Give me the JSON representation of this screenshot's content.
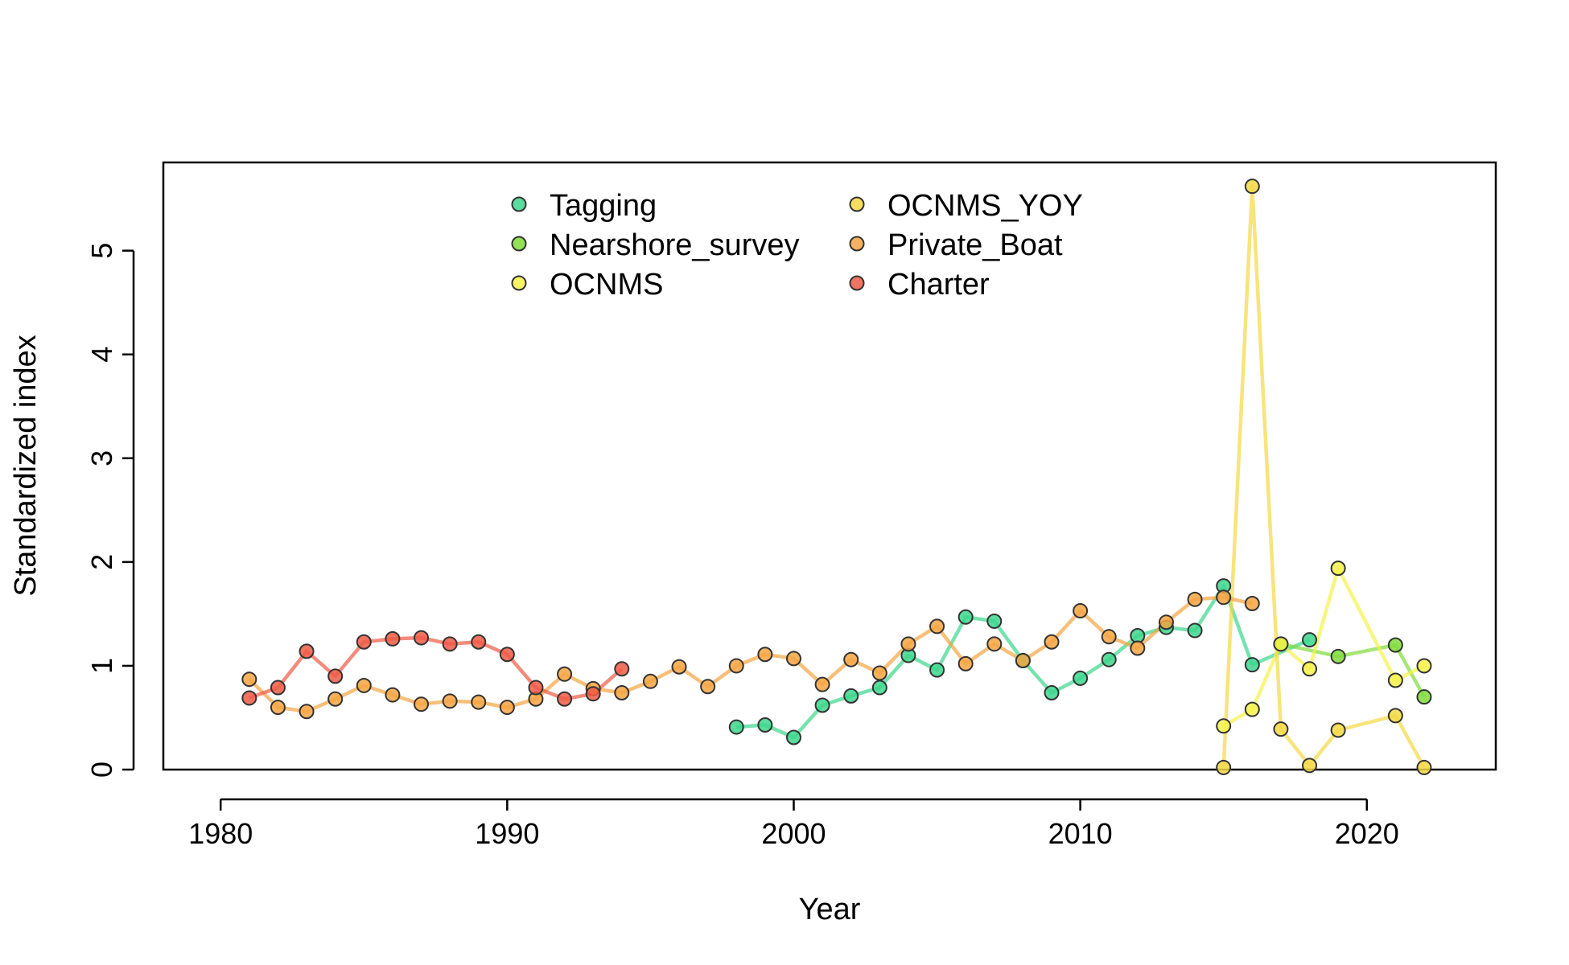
{
  "chart_data": {
    "type": "line",
    "title": "",
    "xlabel": "Year",
    "ylabel": "Standardized index",
    "xlim": [
      1978,
      2024.5
    ],
    "ylim": [
      0,
      5.85
    ],
    "xticks": [
      1980,
      1990,
      2000,
      2010,
      2020
    ],
    "yticks": [
      0,
      1,
      2,
      3,
      4,
      5
    ],
    "grid": false,
    "legend_position": "top-center",
    "series": [
      {
        "name": "Tagging",
        "color": "#3cd68c",
        "x": [
          1998,
          1999,
          2000,
          2001,
          2002,
          2003,
          2004,
          2005,
          2006,
          2007,
          2008,
          2009,
          2010,
          2011,
          2012,
          2013,
          2014,
          2015,
          2016,
          2018
        ],
        "values": [
          0.41,
          0.43,
          0.31,
          0.62,
          0.71,
          0.79,
          1.1,
          0.96,
          1.47,
          1.43,
          1.05,
          0.74,
          0.88,
          1.06,
          1.29,
          1.37,
          1.34,
          1.77,
          1.01,
          1.25
        ]
      },
      {
        "name": "Nearshore_survey",
        "color": "#7fdc3a",
        "x": [
          2017,
          2019,
          2021,
          2022
        ],
        "values": [
          1.21,
          1.09,
          1.2,
          0.7
        ]
      },
      {
        "name": "OCNMS",
        "color": "#f4f24a",
        "x": [
          2015,
          2016,
          2017,
          2018,
          2019,
          2021,
          2022
        ],
        "values": [
          0.42,
          0.58,
          1.21,
          0.97,
          1.94,
          0.86,
          1.0
        ]
      },
      {
        "name": "OCNMS_YOY",
        "color": "#f5d845",
        "x": [
          2015,
          2016,
          2017,
          2018,
          2019,
          2021,
          2022
        ],
        "values": [
          0.02,
          5.62,
          0.39,
          0.04,
          0.38,
          0.52,
          0.02
        ]
      },
      {
        "name": "Private_Boat",
        "color": "#f5a442",
        "x": [
          1981,
          1982,
          1983,
          1984,
          1985,
          1986,
          1987,
          1988,
          1989,
          1990,
          1991,
          1992,
          1993,
          1994,
          1995,
          1996,
          1997,
          1998,
          1999,
          2000,
          2001,
          2002,
          2003,
          2004,
          2005,
          2006,
          2007,
          2008,
          2009,
          2010,
          2011,
          2012,
          2013,
          2014,
          2015,
          2016
        ],
        "values": [
          0.87,
          0.6,
          0.56,
          0.68,
          0.81,
          0.72,
          0.63,
          0.66,
          0.65,
          0.6,
          0.68,
          0.92,
          0.78,
          0.74,
          0.85,
          0.99,
          0.8,
          1.0,
          1.11,
          1.07,
          0.82,
          1.06,
          0.93,
          1.21,
          1.38,
          1.02,
          1.21,
          1.05,
          1.23,
          1.53,
          1.28,
          1.17,
          1.42,
          1.64,
          1.66,
          1.6
        ]
      },
      {
        "name": "Charter",
        "color": "#ee5a45",
        "x": [
          1981,
          1982,
          1983,
          1984,
          1985,
          1986,
          1987,
          1988,
          1989,
          1990,
          1991,
          1992,
          1993,
          1994
        ],
        "values": [
          0.69,
          0.79,
          1.14,
          0.9,
          1.23,
          1.26,
          1.27,
          1.21,
          1.23,
          1.11,
          0.79,
          0.68,
          0.73,
          0.97
        ]
      }
    ]
  }
}
